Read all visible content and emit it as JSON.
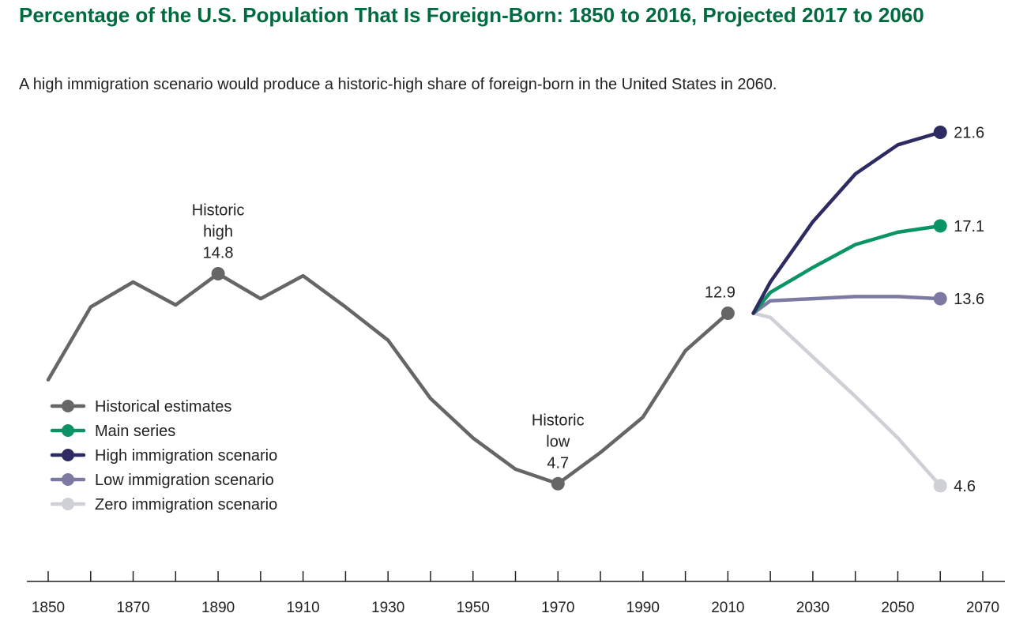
{
  "title": "Percentage of the U.S. Population That Is Foreign-Born: 1850 to 2016, Projected 2017 to 2060",
  "subtitle": "A high immigration scenario would produce a historic-high share of foreign-born in the United States in 2060.",
  "chart_data": {
    "type": "line",
    "title": "Percentage of the U.S. Population That Is Foreign-Born: 1850 to 2016, Projected 2017 to 2060",
    "xlim": [
      1850,
      2070
    ],
    "ylim": [
      0,
      22
    ],
    "x_ticks": [
      1850,
      1870,
      1890,
      1910,
      1930,
      1950,
      1970,
      1990,
      2010,
      2030,
      2050,
      2070
    ],
    "grid": false,
    "legend_position": "left",
    "series": [
      {
        "name": "Historical estimates",
        "color": "#666666",
        "points": [
          [
            1850,
            9.7
          ],
          [
            1860,
            13.2
          ],
          [
            1870,
            14.4
          ],
          [
            1880,
            13.3
          ],
          [
            1890,
            14.8
          ],
          [
            1900,
            13.6
          ],
          [
            1910,
            14.7
          ],
          [
            1920,
            13.2
          ],
          [
            1930,
            11.6
          ],
          [
            1940,
            8.8
          ],
          [
            1950,
            6.9
          ],
          [
            1960,
            5.4
          ],
          [
            1970,
            4.7
          ],
          [
            1980,
            6.2
          ],
          [
            1990,
            7.9
          ],
          [
            2000,
            11.1
          ],
          [
            2010,
            12.9
          ]
        ]
      },
      {
        "name": "Main series",
        "color": "#0a9466",
        "points": [
          [
            2016,
            12.9
          ],
          [
            2020,
            13.9
          ],
          [
            2030,
            15.1
          ],
          [
            2040,
            16.2
          ],
          [
            2050,
            16.8
          ],
          [
            2060,
            17.1
          ]
        ]
      },
      {
        "name": "High immigration scenario",
        "color": "#2e2a62",
        "points": [
          [
            2016,
            12.9
          ],
          [
            2020,
            14.4
          ],
          [
            2030,
            17.3
          ],
          [
            2040,
            19.6
          ],
          [
            2050,
            21.0
          ],
          [
            2060,
            21.6
          ]
        ]
      },
      {
        "name": "Low immigration scenario",
        "color": "#7c7aa2",
        "points": [
          [
            2016,
            12.9
          ],
          [
            2020,
            13.5
          ],
          [
            2030,
            13.6
          ],
          [
            2040,
            13.7
          ],
          [
            2050,
            13.7
          ],
          [
            2060,
            13.6
          ]
        ]
      },
      {
        "name": "Zero immigration scenario",
        "color": "#cfcfd6",
        "points": [
          [
            2016,
            12.9
          ],
          [
            2020,
            12.7
          ],
          [
            2030,
            10.8
          ],
          [
            2040,
            8.9
          ],
          [
            2050,
            6.9
          ],
          [
            2060,
            4.6
          ]
        ]
      }
    ],
    "annotations": [
      {
        "x": 1890,
        "y": 14.8,
        "lines": [
          "Historic",
          "high",
          "14.8"
        ],
        "series": 0
      },
      {
        "x": 1970,
        "y": 4.7,
        "lines": [
          "Historic",
          "low",
          "4.7"
        ],
        "series": 0
      },
      {
        "x": 2010,
        "y": 12.9,
        "lines": [
          "12.9"
        ],
        "series": 0
      }
    ],
    "end_labels": [
      {
        "series": 2,
        "text": "21.6"
      },
      {
        "series": 1,
        "text": "17.1"
      },
      {
        "series": 3,
        "text": "13.6"
      },
      {
        "series": 4,
        "text": "4.6"
      }
    ]
  }
}
